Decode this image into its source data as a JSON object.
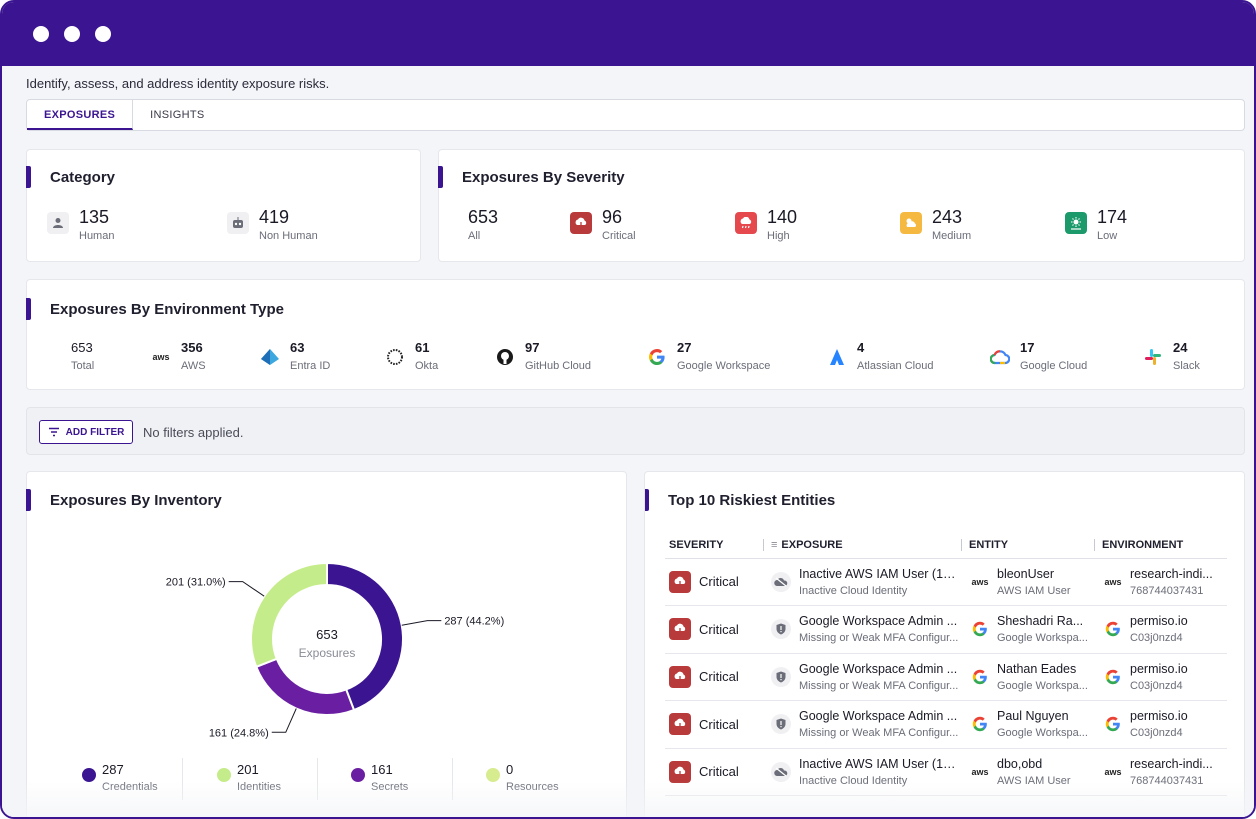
{
  "window": {
    "title_dots": 3
  },
  "header": {
    "subtitle": "Identify, assess, and address identity exposure risks."
  },
  "tabs": [
    {
      "label": "EXPOSURES",
      "active": true
    },
    {
      "label": "INSIGHTS",
      "active": false
    }
  ],
  "category": {
    "title": "Category",
    "items": [
      {
        "value": "135",
        "label": "Human",
        "icon": "person-icon"
      },
      {
        "value": "419",
        "label": "Non Human",
        "icon": "robot-icon"
      }
    ]
  },
  "severity": {
    "title": "Exposures By Severity",
    "items": [
      {
        "value": "653",
        "label": "All",
        "color": ""
      },
      {
        "value": "96",
        "label": "Critical",
        "color": "#b83a3a"
      },
      {
        "value": "140",
        "label": "High",
        "color": "#e5484d"
      },
      {
        "value": "243",
        "label": "Medium",
        "color": "#f5b942"
      },
      {
        "value": "174",
        "label": "Low",
        "color": "#1c9a6b"
      }
    ]
  },
  "environment": {
    "title": "Exposures By Environment Type",
    "items": [
      {
        "value": "653",
        "label": "Total",
        "icon": ""
      },
      {
        "value": "356",
        "label": "AWS",
        "icon": "aws-icon"
      },
      {
        "value": "63",
        "label": "Entra ID",
        "icon": "entra-icon"
      },
      {
        "value": "61",
        "label": "Okta",
        "icon": "okta-icon"
      },
      {
        "value": "97",
        "label": "GitHub Cloud",
        "icon": "github-icon"
      },
      {
        "value": "27",
        "label": "Google Workspace",
        "icon": "google-icon"
      },
      {
        "value": "4",
        "label": "Atlassian Cloud",
        "icon": "atlassian-icon"
      },
      {
        "value": "17",
        "label": "Google Cloud",
        "icon": "google-cloud-icon"
      },
      {
        "value": "24",
        "label": "Slack",
        "icon": "slack-icon"
      }
    ]
  },
  "filter": {
    "button_label": "ADD FILTER",
    "status": "No filters applied."
  },
  "inventory": {
    "title": "Exposures By Inventory",
    "center_value": "653",
    "center_label": "Exposures",
    "legend": [
      {
        "value": "287",
        "label": "Credentials",
        "color": "#3b1591"
      },
      {
        "value": "201",
        "label": "Identities",
        "color": "#c5ec8a"
      },
      {
        "value": "161",
        "label": "Secrets",
        "color": "#6a1fa3"
      },
      {
        "value": "0",
        "label": "Resources",
        "color": "#d7ec8f"
      }
    ]
  },
  "chart_data": {
    "type": "pie",
    "categories": [
      "Credentials",
      "Secrets",
      "Identities",
      "Resources"
    ],
    "values": [
      287,
      161,
      201,
      0
    ],
    "data_labels": [
      "287 (44.2%)",
      "161 (24.8%)",
      "201 (31.0%)",
      ""
    ],
    "colors": [
      "#3b1591",
      "#6a1fa3",
      "#c5ec8a",
      "#d7ec8f"
    ],
    "title": "Exposures By Inventory"
  },
  "riskiest": {
    "title": "Top 10 Riskiest Entities",
    "columns": [
      "SEVERITY",
      "EXPOSURE",
      "ENTITY",
      "ENVIRONMENT"
    ],
    "rows": [
      {
        "severity": "Critical",
        "exposure_title": "Inactive AWS IAM User (18...",
        "exposure_sub": "Inactive Cloud Identity",
        "exposure_icon": "cloud-off-icon",
        "entity_name": "bleonUser",
        "entity_type": "AWS IAM User",
        "entity_icon": "aws",
        "env_name": "research-indi...",
        "env_id": "768744037431",
        "env_icon": "aws"
      },
      {
        "severity": "Critical",
        "exposure_title": "Google Workspace Admin ...",
        "exposure_sub": "Missing or Weak MFA Configur...",
        "exposure_icon": "shield-icon",
        "entity_name": "Sheshadri Ra...",
        "entity_type": "Google Workspa...",
        "entity_icon": "google",
        "env_name": "permiso.io",
        "env_id": "C03j0nzd4",
        "env_icon": "google"
      },
      {
        "severity": "Critical",
        "exposure_title": "Google Workspace Admin ...",
        "exposure_sub": "Missing or Weak MFA Configur...",
        "exposure_icon": "shield-icon",
        "entity_name": "Nathan Eades",
        "entity_type": "Google Workspa...",
        "entity_icon": "google",
        "env_name": "permiso.io",
        "env_id": "C03j0nzd4",
        "env_icon": "google"
      },
      {
        "severity": "Critical",
        "exposure_title": "Google Workspace Admin ...",
        "exposure_sub": "Missing or Weak MFA Configur...",
        "exposure_icon": "shield-icon",
        "entity_name": "Paul Nguyen",
        "entity_type": "Google Workspa...",
        "entity_icon": "google",
        "env_name": "permiso.io",
        "env_id": "C03j0nzd4",
        "env_icon": "google"
      },
      {
        "severity": "Critical",
        "exposure_title": "Inactive AWS IAM User (18...",
        "exposure_sub": "Inactive Cloud Identity",
        "exposure_icon": "cloud-off-icon",
        "entity_name": "dbo,obd",
        "entity_type": "AWS IAM User",
        "entity_icon": "aws",
        "env_name": "research-indi...",
        "env_id": "768744037431",
        "env_icon": "aws"
      }
    ]
  }
}
